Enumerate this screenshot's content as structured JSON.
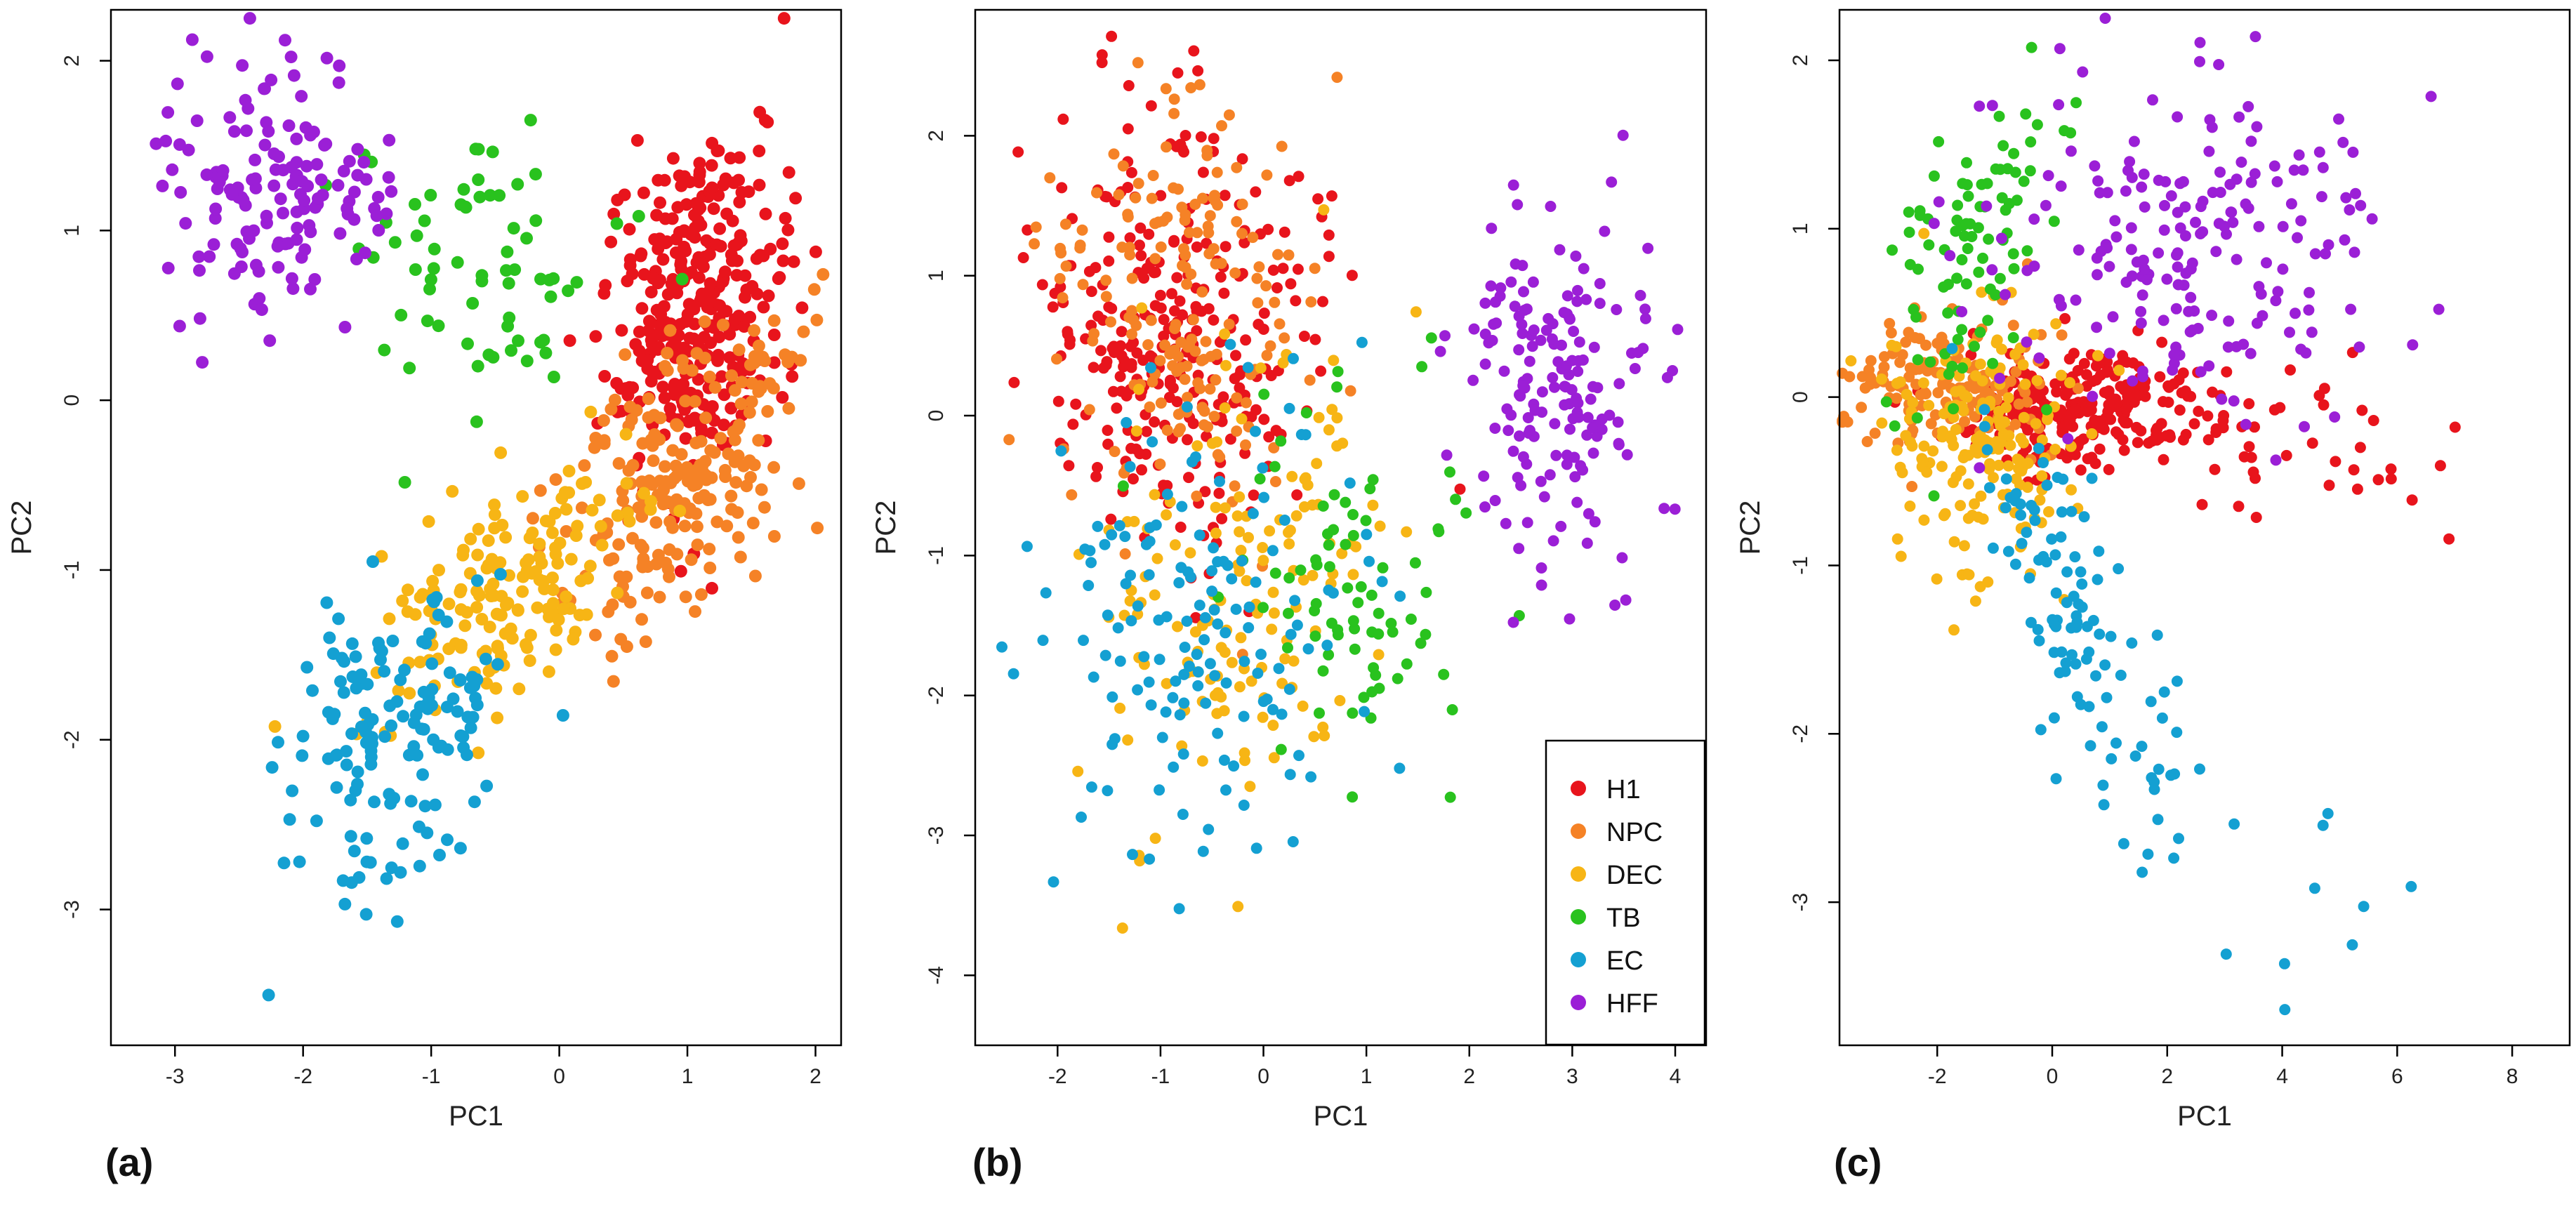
{
  "figure": {
    "legend": {
      "entries": [
        {
          "label": "H1",
          "color": "#e8141c"
        },
        {
          "label": "NPC",
          "color": "#f58226"
        },
        {
          "label": "DEC",
          "color": "#f7b515"
        },
        {
          "label": "TB",
          "color": "#29c21e"
        },
        {
          "label": "EC",
          "color": "#14a0d2"
        },
        {
          "label": "HFF",
          "color": "#9b1fd6"
        }
      ]
    }
  },
  "chart_data": [
    {
      "type": "scatter",
      "panel_label": "(a)",
      "title": "",
      "xlabel": "PC1",
      "ylabel": "PC2",
      "xlim": [
        -3.5,
        2.2
      ],
      "ylim": [
        -3.8,
        2.3
      ],
      "xticks": [
        -3,
        -2,
        -1,
        0,
        1,
        2
      ],
      "yticks": [
        -3,
        -2,
        -1,
        0,
        1,
        2
      ],
      "point_radius": 9,
      "series": [
        {
          "name": "H1",
          "color": "#e8141c",
          "n": 330,
          "seed": 11,
          "clusters": [
            {
              "w": 1,
              "mx": 1.05,
              "my": 0.55,
              "sx": 0.34,
              "sy": 0.5,
              "rho": 0.2
            }
          ]
        },
        {
          "name": "NPC",
          "color": "#f58226",
          "n": 230,
          "seed": 12,
          "clusters": [
            {
              "w": 1,
              "mx": 0.95,
              "my": -0.45,
              "sx": 0.45,
              "sy": 0.45,
              "rho": 0.45
            }
          ]
        },
        {
          "name": "DEC",
          "color": "#f7b515",
          "n": 170,
          "seed": 13,
          "clusters": [
            {
              "w": 1,
              "mx": -0.4,
              "my": -1.1,
              "sx": 0.5,
              "sy": 0.38,
              "rho": 0.55
            }
          ]
        },
        {
          "name": "TB",
          "color": "#29c21e",
          "n": 70,
          "seed": 14,
          "clusters": [
            {
              "w": 1,
              "mx": -0.7,
              "my": 0.85,
              "sx": 0.5,
              "sy": 0.4,
              "rho": 0
            }
          ]
        },
        {
          "name": "EC",
          "color": "#14a0d2",
          "n": 150,
          "seed": 15,
          "clusters": [
            {
              "w": 1,
              "mx": -1.3,
              "my": -2.0,
              "sx": 0.4,
              "sy": 0.5,
              "rho": 0.35
            }
          ]
        },
        {
          "name": "HFF",
          "color": "#9b1fd6",
          "n": 150,
          "seed": 16,
          "clusters": [
            {
              "w": 1,
              "mx": -2.15,
              "my": 1.2,
              "sx": 0.42,
              "sy": 0.38,
              "rho": 0
            }
          ]
        }
      ]
    },
    {
      "type": "scatter",
      "panel_label": "(b)",
      "title": "",
      "xlabel": "PC1",
      "ylabel": "PC2",
      "xlim": [
        -2.8,
        4.3
      ],
      "ylim": [
        -4.5,
        2.9
      ],
      "xticks": [
        -2,
        -1,
        0,
        1,
        2,
        3,
        4
      ],
      "yticks": [
        -4,
        -3,
        -2,
        -1,
        0,
        1,
        2
      ],
      "point_radius": 8,
      "series": [
        {
          "name": "H1",
          "color": "#e8141c",
          "n": 300,
          "seed": 21,
          "clusters": [
            {
              "w": 1,
              "mx": -0.8,
              "my": 0.6,
              "sx": 0.65,
              "sy": 0.8,
              "rho": 0
            }
          ]
        },
        {
          "name": "NPC",
          "color": "#f58226",
          "n": 180,
          "seed": 22,
          "clusters": [
            {
              "w": 1,
              "mx": -0.7,
              "my": 0.8,
              "sx": 0.6,
              "sy": 0.75,
              "rho": 0
            }
          ]
        },
        {
          "name": "DEC",
          "color": "#f7b515",
          "n": 150,
          "seed": 23,
          "clusters": [
            {
              "w": 1,
              "mx": -0.3,
              "my": -1.3,
              "sx": 0.7,
              "sy": 0.8,
              "rho": 0.2
            }
          ]
        },
        {
          "name": "TB",
          "color": "#29c21e",
          "n": 80,
          "seed": 24,
          "clusters": [
            {
              "w": 1,
              "mx": 0.9,
              "my": -1.2,
              "sx": 0.5,
              "sy": 0.7,
              "rho": 0
            }
          ]
        },
        {
          "name": "EC",
          "color": "#14a0d2",
          "n": 150,
          "seed": 25,
          "clusters": [
            {
              "w": 1,
              "mx": -0.6,
              "my": -1.6,
              "sx": 0.75,
              "sy": 0.85,
              "rho": 0.1
            }
          ]
        },
        {
          "name": "HFF",
          "color": "#9b1fd6",
          "n": 170,
          "seed": 26,
          "clusters": [
            {
              "w": 1,
              "mx": 2.9,
              "my": 0.1,
              "sx": 0.5,
              "sy": 0.62,
              "rho": 0
            }
          ]
        }
      ],
      "legend": {
        "position": "bottom-right",
        "entries": [
          "H1",
          "NPC",
          "DEC",
          "TB",
          "EC",
          "HFF"
        ]
      }
    },
    {
      "type": "scatter",
      "panel_label": "(c)",
      "title": "",
      "xlabel": "PC1",
      "ylabel": "PC2",
      "xlim": [
        -3.7,
        9.0
      ],
      "ylim": [
        -3.85,
        2.3
      ],
      "xticks": [
        -2,
        0,
        2,
        4,
        6,
        8
      ],
      "yticks": [
        -3,
        -2,
        -1,
        0,
        1,
        2
      ],
      "point_radius": 8,
      "series": [
        {
          "name": "H1",
          "color": "#e8141c",
          "n": 300,
          "seed": 31,
          "clusters": [
            {
              "w": 0.9,
              "mx": 0.5,
              "my": -0.05,
              "sx": 1.2,
              "sy": 0.18,
              "rho": 0
            },
            {
              "w": 0.1,
              "mx": 4.8,
              "my": -0.35,
              "sx": 1.4,
              "sy": 0.25,
              "rho": -0.3
            }
          ]
        },
        {
          "name": "NPC",
          "color": "#f58226",
          "n": 150,
          "seed": 32,
          "clusters": [
            {
              "w": 1,
              "mx": -1.8,
              "my": 0.05,
              "sx": 0.9,
              "sy": 0.2,
              "rho": 0
            }
          ]
        },
        {
          "name": "DEC",
          "color": "#f7b515",
          "n": 180,
          "seed": 33,
          "clusters": [
            {
              "w": 1,
              "mx": -1.2,
              "my": -0.3,
              "sx": 0.9,
              "sy": 0.4,
              "rho": 0
            }
          ]
        },
        {
          "name": "TB",
          "color": "#29c21e",
          "n": 90,
          "seed": 34,
          "clusters": [
            {
              "w": 1,
              "mx": -1.6,
              "my": 0.7,
              "sx": 0.8,
              "sy": 0.55,
              "rho": 0.55
            }
          ]
        },
        {
          "name": "EC",
          "color": "#14a0d2",
          "n": 120,
          "seed": 35,
          "clusters": [
            {
              "w": 0.92,
              "mx": 0.3,
              "my": -1.3,
              "sx": 1.05,
              "sy": 0.75,
              "rho": -0.85
            },
            {
              "w": 0.08,
              "mx": 4.5,
              "my": -3.0,
              "sx": 1.0,
              "sy": 0.35,
              "rho": 0
            }
          ]
        },
        {
          "name": "HFF",
          "color": "#9b1fd6",
          "n": 200,
          "seed": 36,
          "clusters": [
            {
              "w": 1,
              "mx": 2.3,
              "my": 0.9,
              "sx": 1.7,
              "sy": 0.5,
              "rho": 0
            }
          ]
        }
      ]
    }
  ]
}
